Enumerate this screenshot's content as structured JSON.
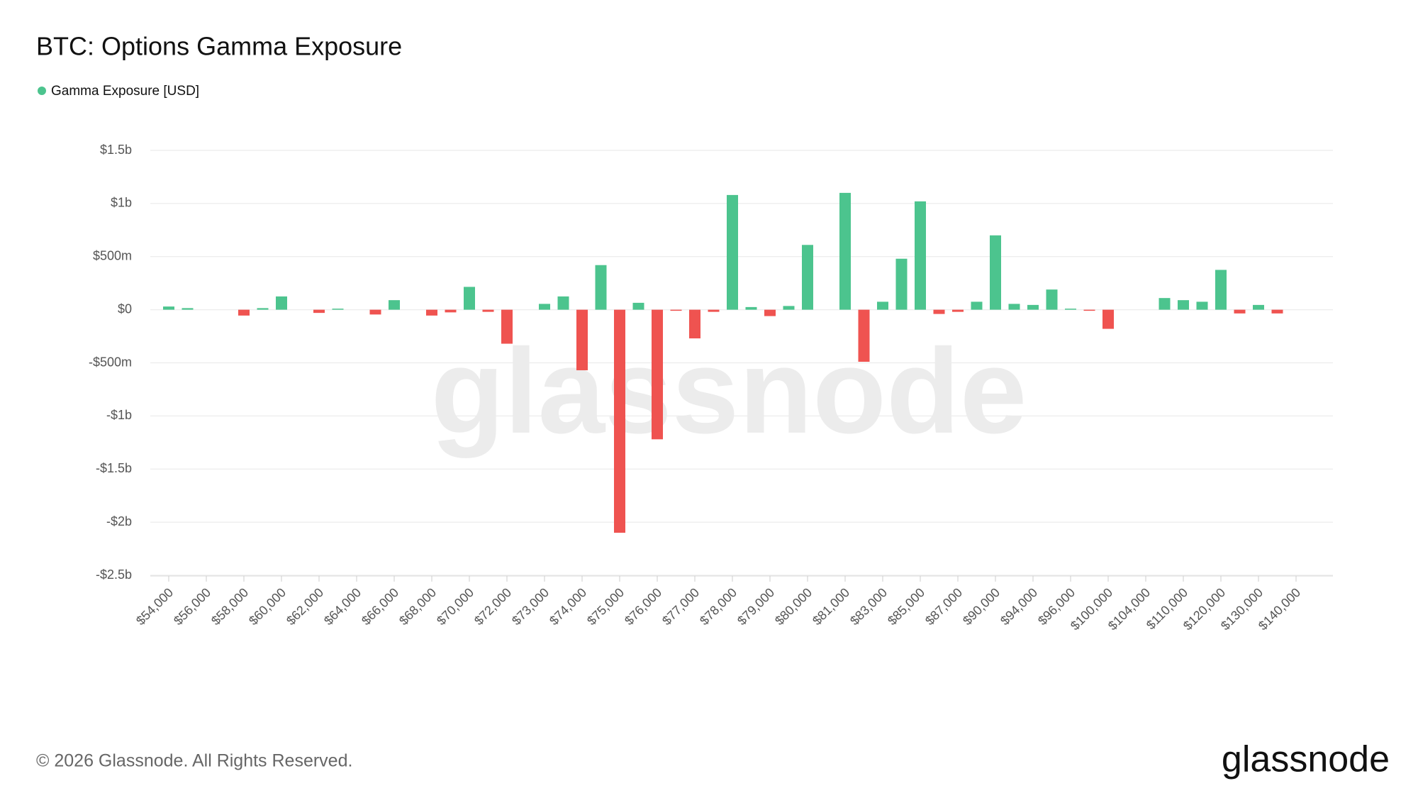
{
  "chart_data": {
    "type": "bar",
    "title": "BTC: Options Gamma Exposure",
    "series": [
      {
        "name": "Gamma Exposure [USD]",
        "color": "#4cc48e",
        "values": [
          30000000,
          15000000,
          0,
          0,
          -55000000,
          15000000,
          125000000,
          0,
          -30000000,
          10000000,
          0,
          -45000000,
          90000000,
          0,
          -55000000,
          -25000000,
          215000000,
          -20000000,
          -320000000,
          0,
          55000000,
          125000000,
          -570000000,
          420000000,
          -2100000000,
          65000000,
          -1220000000,
          -10000000,
          -270000000,
          -20000000,
          1080000000,
          25000000,
          -60000000,
          35000000,
          610000000,
          0,
          1100000000,
          -490000000,
          75000000,
          480000000,
          1020000000,
          -40000000,
          -20000000,
          75000000,
          700000000,
          55000000,
          45000000,
          190000000,
          10000000,
          -10000000,
          -180000000,
          0,
          0,
          110000000,
          90000000,
          75000000,
          375000000,
          -35000000,
          45000000,
          -35000000,
          0
        ]
      }
    ],
    "negative_color": "#ef5350",
    "categories": [
      "$54,000",
      null,
      "$56,000",
      null,
      "$58,000",
      null,
      "$60,000",
      null,
      "$62,000",
      null,
      "$64,000",
      null,
      "$66,000",
      null,
      "$68,000",
      null,
      "$70,000",
      null,
      "$72,000",
      null,
      "$73,000",
      null,
      "$74,000",
      null,
      "$75,000",
      null,
      "$76,000",
      null,
      "$77,000",
      null,
      "$78,000",
      null,
      "$79,000",
      null,
      "$80,000",
      null,
      "$81,000",
      null,
      "$83,000",
      null,
      "$85,000",
      null,
      "$87,000",
      null,
      "$90,000",
      null,
      "$94,000",
      null,
      "$96,000",
      null,
      "$100,000",
      null,
      "$104,000",
      null,
      "$110,000",
      null,
      "$120,000",
      null,
      "$130,000",
      null,
      "$140,000"
    ],
    "ylim": [
      -2500000000,
      1500000000
    ],
    "yticks": [
      {
        "value": -2500000000,
        "label": "-$2.5b"
      },
      {
        "value": -2000000000,
        "label": "-$2b"
      },
      {
        "value": -1500000000,
        "label": "-$1.5b"
      },
      {
        "value": -1000000000,
        "label": "-$1b"
      },
      {
        "value": -500000000,
        "label": "-$500m"
      },
      {
        "value": 0,
        "label": "$0"
      },
      {
        "value": 500000000,
        "label": "$500m"
      },
      {
        "value": 1000000000,
        "label": "$1b"
      },
      {
        "value": 1500000000,
        "label": "$1.5b"
      }
    ],
    "grid": true
  },
  "watermark": "glassnode",
  "footer": "© 2026 Glassnode. All Rights Reserved.",
  "logo": "glassnode"
}
